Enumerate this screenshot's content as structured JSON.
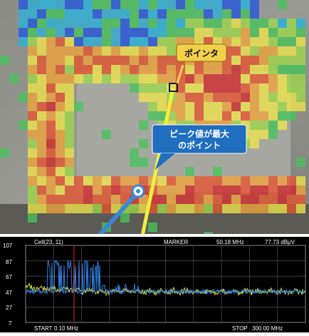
{
  "heatmap": {
    "pointer_label": "ポインタ",
    "peak_label_line1": "ピーク値が最大",
    "peak_label_line2": "のポイント",
    "colors": {
      "pointer_bubble": "#f2d14a",
      "peak_bubble": "#1f6ec0",
      "yellow_arrow": "#f1ee40",
      "blue_arrow": "#3b86d6"
    }
  },
  "spectrum": {
    "cell_label": "Cell(23, 11)",
    "marker_label": "MARKER",
    "marker_freq": "50.18 MHz",
    "marker_level": "77.73 dBμV",
    "y_ticks": [
      "107",
      "87",
      "67",
      "47",
      "27",
      "7"
    ],
    "start_label": "START",
    "start_value": "0.10 MHz",
    "stop_label": "STOP",
    "stop_value": "300.00 MHz",
    "colors": {
      "background": "#000000",
      "grid": "#8a8a8a",
      "trace_yellow": "#e8e23a",
      "trace_blue": "#2f7fe0",
      "marker_line": "#d01818"
    }
  }
}
